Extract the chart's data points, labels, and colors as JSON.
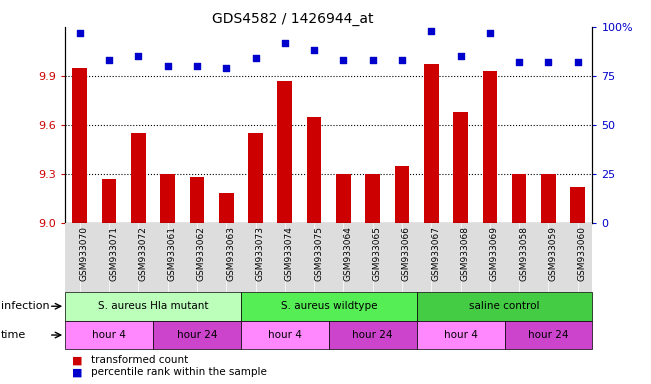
{
  "title": "GDS4582 / 1426944_at",
  "samples": [
    "GSM933070",
    "GSM933071",
    "GSM933072",
    "GSM933061",
    "GSM933062",
    "GSM933063",
    "GSM933073",
    "GSM933074",
    "GSM933075",
    "GSM933064",
    "GSM933065",
    "GSM933066",
    "GSM933067",
    "GSM933068",
    "GSM933069",
    "GSM933058",
    "GSM933059",
    "GSM933060"
  ],
  "bar_values": [
    9.95,
    9.27,
    9.55,
    9.3,
    9.28,
    9.18,
    9.55,
    9.87,
    9.65,
    9.3,
    9.3,
    9.35,
    9.97,
    9.68,
    9.93,
    9.3,
    9.3,
    9.22
  ],
  "dot_values": [
    97,
    83,
    85,
    80,
    80,
    79,
    84,
    92,
    88,
    83,
    83,
    83,
    98,
    85,
    97,
    82,
    82,
    82
  ],
  "ylim_left": [
    9.0,
    10.2
  ],
  "ylim_right": [
    0,
    100
  ],
  "yticks_left": [
    9.0,
    9.3,
    9.6,
    9.9
  ],
  "yticks_right": [
    0,
    25,
    50,
    75,
    100
  ],
  "bar_color": "#cc0000",
  "dot_color": "#0000cc",
  "grid_values": [
    9.3,
    9.6,
    9.9
  ],
  "infection_groups": [
    {
      "label": "S. aureus Hla mutant",
      "start": 0,
      "end": 6,
      "color": "#bbffbb"
    },
    {
      "label": "S. aureus wildtype",
      "start": 6,
      "end": 12,
      "color": "#55ee55"
    },
    {
      "label": "saline control",
      "start": 12,
      "end": 18,
      "color": "#44cc44"
    }
  ],
  "time_groups": [
    {
      "label": "hour 4",
      "start": 0,
      "end": 3,
      "color": "#ff88ff"
    },
    {
      "label": "hour 24",
      "start": 3,
      "end": 6,
      "color": "#cc44cc"
    },
    {
      "label": "hour 4",
      "start": 6,
      "end": 9,
      "color": "#ff88ff"
    },
    {
      "label": "hour 24",
      "start": 9,
      "end": 12,
      "color": "#cc44cc"
    },
    {
      "label": "hour 4",
      "start": 12,
      "end": 15,
      "color": "#ff88ff"
    },
    {
      "label": "hour 24",
      "start": 15,
      "end": 18,
      "color": "#cc44cc"
    }
  ],
  "infection_label": "infection",
  "time_label": "time",
  "legend_bar_label": "transformed count",
  "legend_dot_label": "percentile rank within the sample",
  "xtick_bg_color": "#dddddd",
  "plot_bg_color": "#ffffff"
}
